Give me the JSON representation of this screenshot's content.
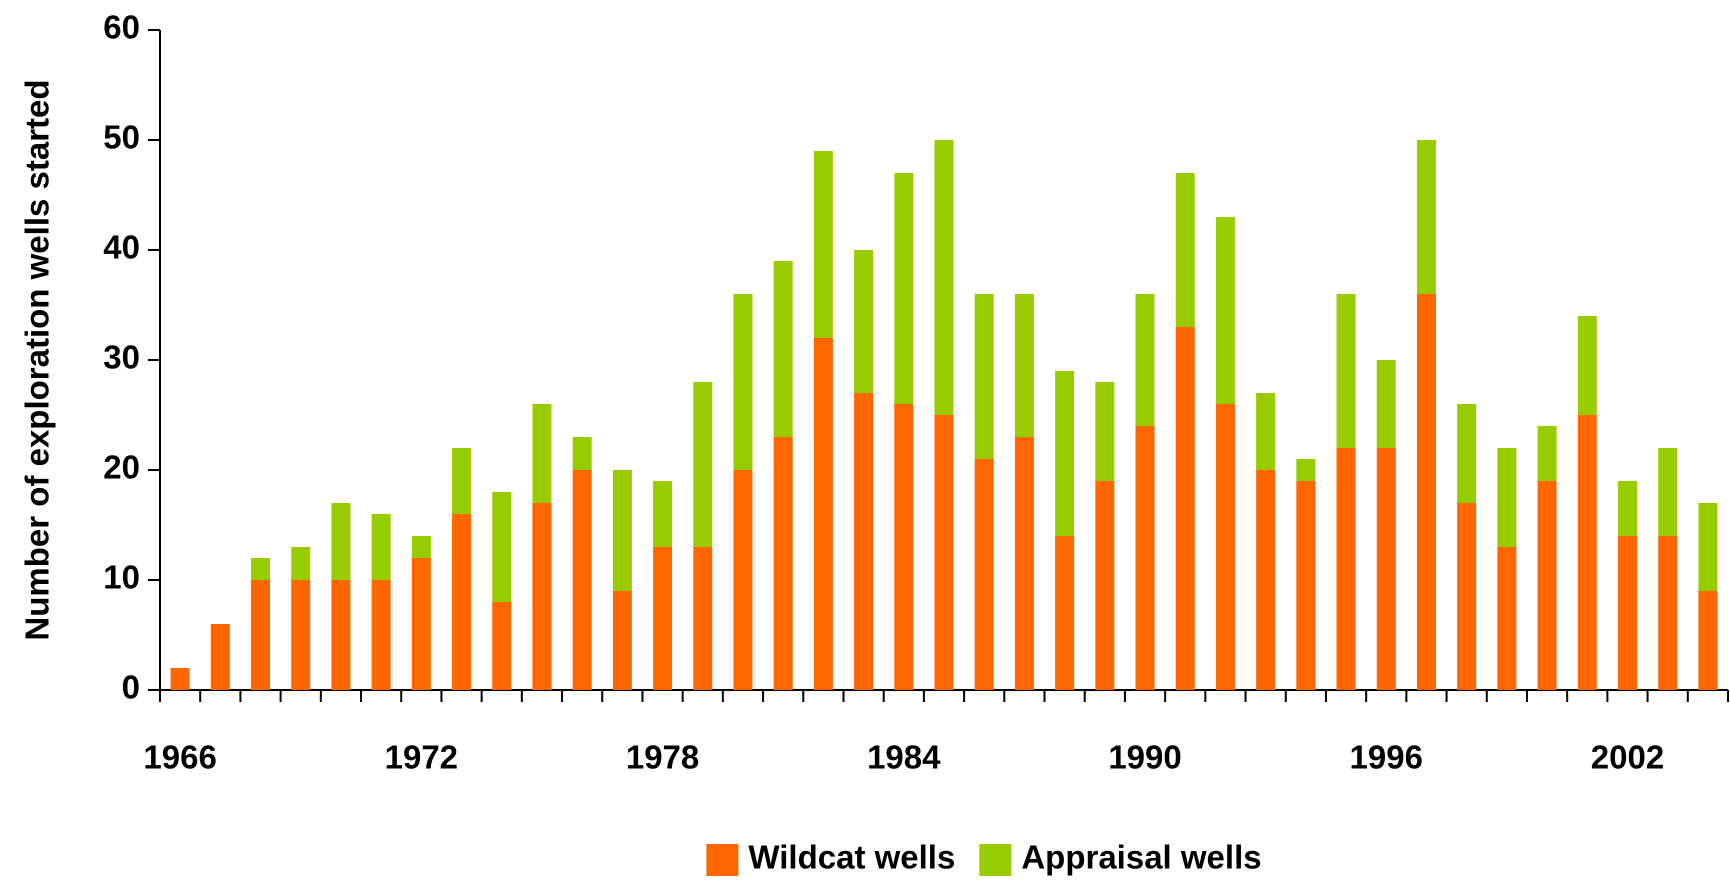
{
  "chart_data": {
    "type": "stacked_bar",
    "y_label": "Number of exploration wells started",
    "categories": [
      "1966",
      null,
      null,
      null,
      null,
      null,
      "1972",
      null,
      null,
      null,
      null,
      null,
      "1978",
      null,
      null,
      null,
      null,
      null,
      "1984",
      null,
      null,
      null,
      null,
      null,
      "1990",
      null,
      null,
      null,
      null,
      null,
      "1996",
      null,
      null,
      null,
      null,
      null,
      "2002",
      null,
      null
    ],
    "series": [
      {
        "name": "Wildcat wells",
        "color": "#ff6600",
        "values": [
          2,
          6,
          10,
          10,
          10,
          10,
          12,
          16,
          8,
          17,
          20,
          9,
          13,
          13,
          20,
          23,
          32,
          27,
          26,
          25,
          21,
          23,
          14,
          19,
          24,
          33,
          26,
          20,
          19,
          22,
          22,
          36,
          17,
          13,
          19,
          25,
          14,
          14,
          9
        ]
      },
      {
        "name": "Appraisal wells",
        "color": "#99cc00",
        "values": [
          0,
          0,
          2,
          3,
          7,
          6,
          2,
          6,
          10,
          9,
          3,
          11,
          6,
          15,
          16,
          16,
          17,
          13,
          21,
          25,
          15,
          13,
          15,
          9,
          12,
          14,
          17,
          7,
          2,
          14,
          8,
          14,
          9,
          9,
          5,
          9,
          5,
          8,
          8
        ]
      }
    ],
    "ylim": [
      0,
      60
    ],
    "yticks": [
      0,
      10,
      20,
      30,
      40,
      50,
      60
    ],
    "legend": "bottom"
  }
}
